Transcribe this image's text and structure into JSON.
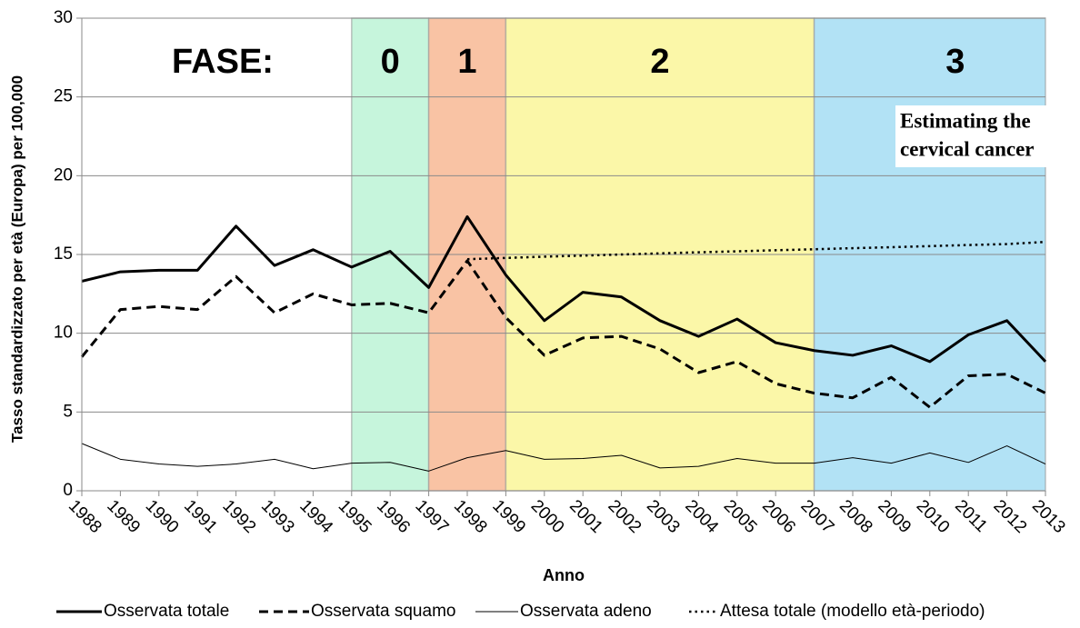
{
  "chart_data": {
    "type": "line",
    "x_label": "Anno",
    "y_label": "Tasso standardizzato per età (Europa) per 100,000",
    "x": [
      1988,
      1989,
      1990,
      1991,
      1992,
      1993,
      1994,
      1995,
      1996,
      1997,
      1998,
      1999,
      2000,
      2001,
      2002,
      2003,
      2004,
      2005,
      2006,
      2007,
      2008,
      2009,
      2010,
      2011,
      2012,
      2013
    ],
    "xlim": [
      1988,
      2013
    ],
    "xticks": [
      1988,
      1989,
      1990,
      1991,
      1992,
      1993,
      1994,
      1995,
      1996,
      1997,
      1998,
      1999,
      2000,
      2001,
      2002,
      2003,
      2004,
      2005,
      2006,
      2007,
      2008,
      2009,
      2010,
      2011,
      2012,
      2013
    ],
    "ylim": [
      0,
      30
    ],
    "yticks": [
      0,
      5,
      10,
      15,
      20,
      25,
      30
    ],
    "grid": true,
    "legend_position": "bottom",
    "series": [
      {
        "name": "Osservata totale",
        "color": "#000000",
        "style": "solid-thick",
        "values": [
          13.3,
          13.9,
          14.0,
          14.0,
          16.8,
          14.3,
          15.3,
          14.2,
          15.2,
          12.9,
          17.4,
          13.7,
          10.8,
          12.6,
          12.3,
          10.8,
          9.8,
          10.9,
          9.4,
          8.9,
          8.6,
          9.2,
          8.2,
          9.9,
          10.8,
          8.2
        ]
      },
      {
        "name": "Osservata squamo",
        "color": "#000000",
        "style": "dashed",
        "values": [
          8.5,
          11.5,
          11.7,
          11.5,
          13.6,
          11.3,
          12.5,
          11.8,
          11.9,
          11.3,
          14.6,
          11.0,
          8.6,
          9.7,
          9.8,
          9.0,
          7.5,
          8.2,
          6.8,
          6.2,
          5.9,
          7.2,
          5.3,
          7.3,
          7.4,
          6.2
        ]
      },
      {
        "name": "Osservata adeno",
        "color": "#000000",
        "style": "thin",
        "values": [
          3.0,
          2.0,
          1.7,
          1.55,
          1.7,
          2.0,
          1.4,
          1.75,
          1.8,
          1.25,
          2.1,
          2.55,
          2.0,
          2.05,
          2.25,
          1.45,
          1.55,
          2.05,
          1.75,
          1.75,
          2.1,
          1.75,
          2.4,
          1.8,
          2.85,
          1.7
        ]
      },
      {
        "name": "Attesa totale (modello età-periodo)",
        "color": "#000000",
        "style": "dotted",
        "values": [
          null,
          null,
          null,
          null,
          null,
          null,
          null,
          null,
          null,
          null,
          14.7,
          14.78,
          14.86,
          14.93,
          15.0,
          15.07,
          15.14,
          15.2,
          15.27,
          15.33,
          15.4,
          15.46,
          15.53,
          15.6,
          15.66,
          15.8
        ]
      }
    ],
    "phase_title": "FASE:",
    "bands": [
      {
        "label": "0",
        "start": 1995,
        "end": 1997,
        "color": "#c6f5dc"
      },
      {
        "label": "1",
        "start": 1997,
        "end": 1999,
        "color": "#f9c3a4"
      },
      {
        "label": "2",
        "start": 1999,
        "end": 2007,
        "color": "#fbf7a8"
      },
      {
        "label": "3",
        "start": 2007,
        "end": 2013,
        "color": "#b2e2f5"
      }
    ],
    "annotations": [
      "Estimating the",
      "cervical cancer"
    ]
  }
}
